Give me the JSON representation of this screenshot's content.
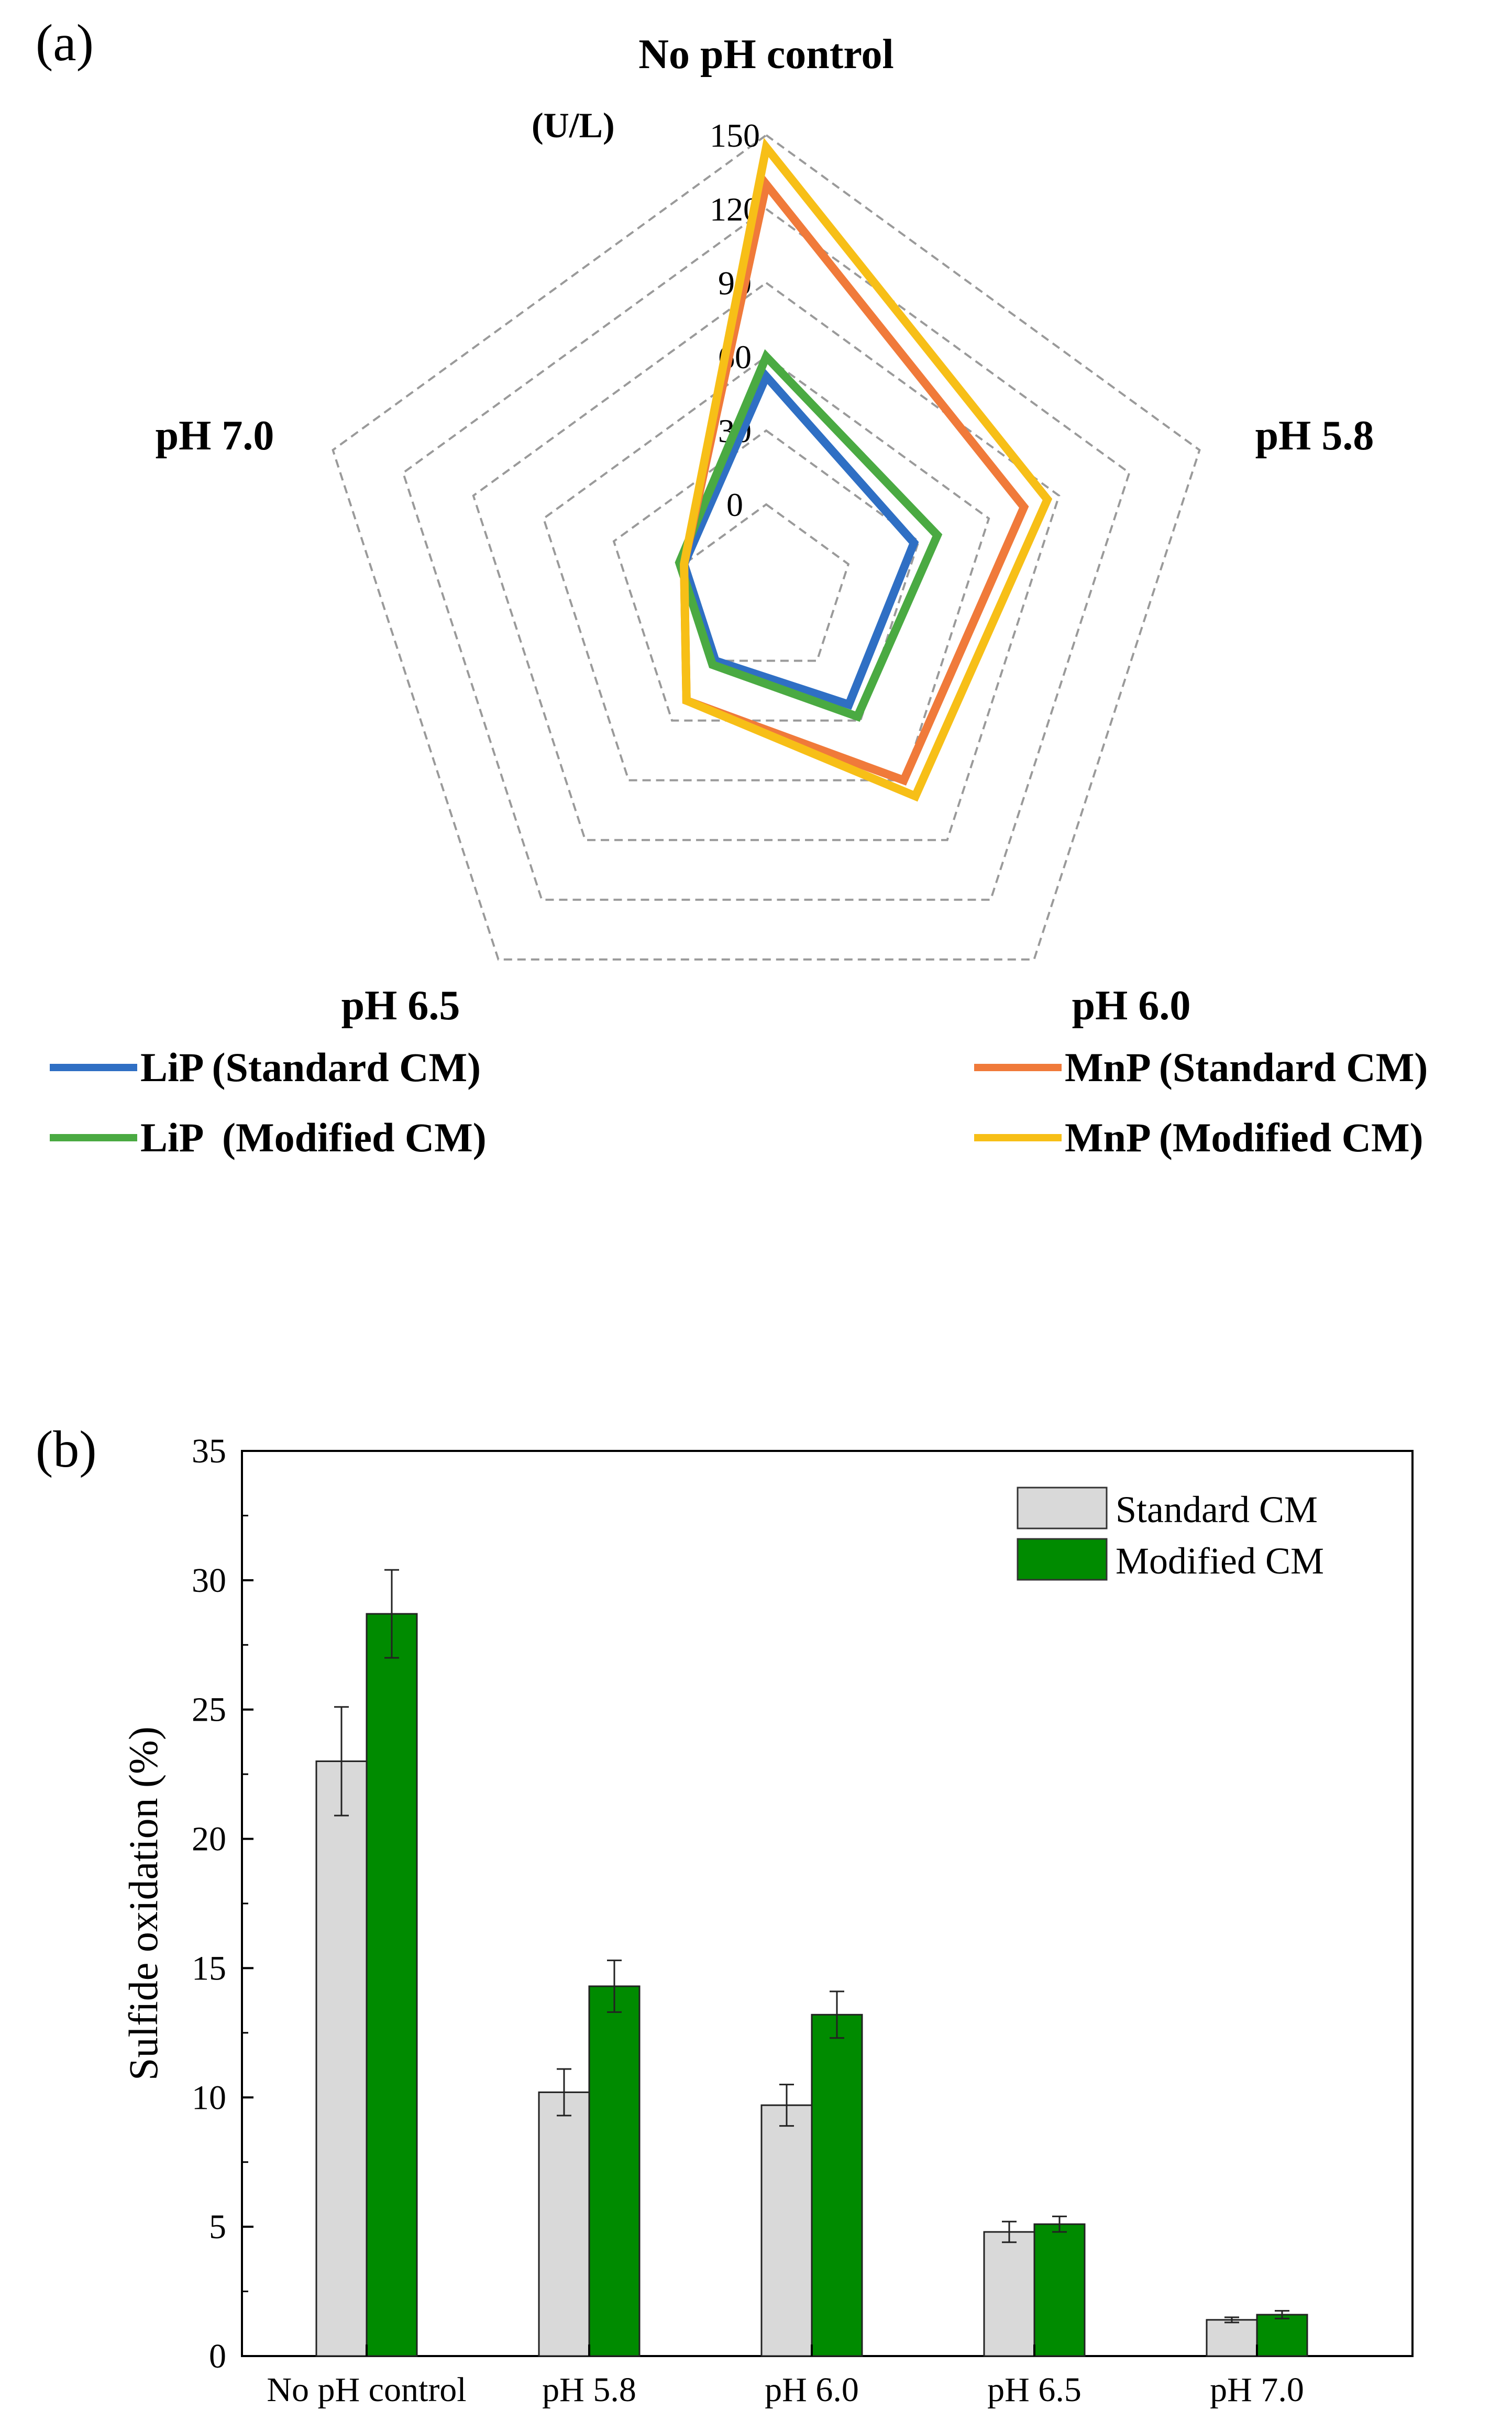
{
  "chart_data": [
    {
      "panel_label": "(a)",
      "type": "radar",
      "unit_label": "(U/L)",
      "axes": [
        "No pH control",
        "pH 5.8",
        "pH 6.0",
        "pH 6.5",
        "pH 7.0"
      ],
      "rmin": 0,
      "rmax": 150,
      "ticks": [
        0,
        30,
        60,
        90,
        120,
        150
      ],
      "series": [
        {
          "name": "LiP (Standard CM)",
          "color": "#2f6fc4",
          "values": [
            52,
            28,
            22,
            0,
            0
          ]
        },
        {
          "name": "LiP  (Modified CM)",
          "color": "#4aaa42",
          "values": [
            60,
            38,
            28,
            2,
            2
          ]
        },
        {
          "name": "MnP (Standard CM)",
          "color": "#f07a3a",
          "values": [
            130,
            75,
            60,
            20,
            0
          ]
        },
        {
          "name": "MnP (Modified CM)",
          "color": "#f7bf17",
          "values": [
            145,
            85,
            68,
            20,
            0
          ]
        }
      ]
    },
    {
      "panel_label": "(b)",
      "type": "bar",
      "ylabel": "Sulfide oxidation (%)",
      "ylim": [
        0,
        35
      ],
      "yticks": [
        0,
        5,
        10,
        15,
        20,
        25,
        30,
        35
      ],
      "categories": [
        "No pH control",
        "pH 5.8",
        "pH 6.0",
        "pH 6.5",
        "pH 7.0"
      ],
      "series": [
        {
          "name": "Standard CM",
          "color": "#d9d9d9",
          "values": [
            23.0,
            10.2,
            9.7,
            4.8,
            1.4
          ],
          "errors": [
            2.1,
            0.9,
            0.8,
            0.4,
            0.1
          ]
        },
        {
          "name": "Modified CM",
          "color": "#008b00",
          "values": [
            28.7,
            14.3,
            13.2,
            5.1,
            1.6
          ],
          "errors": [
            1.7,
            1.0,
            0.9,
            0.3,
            0.15
          ]
        }
      ],
      "legend_position": "top-right"
    }
  ]
}
